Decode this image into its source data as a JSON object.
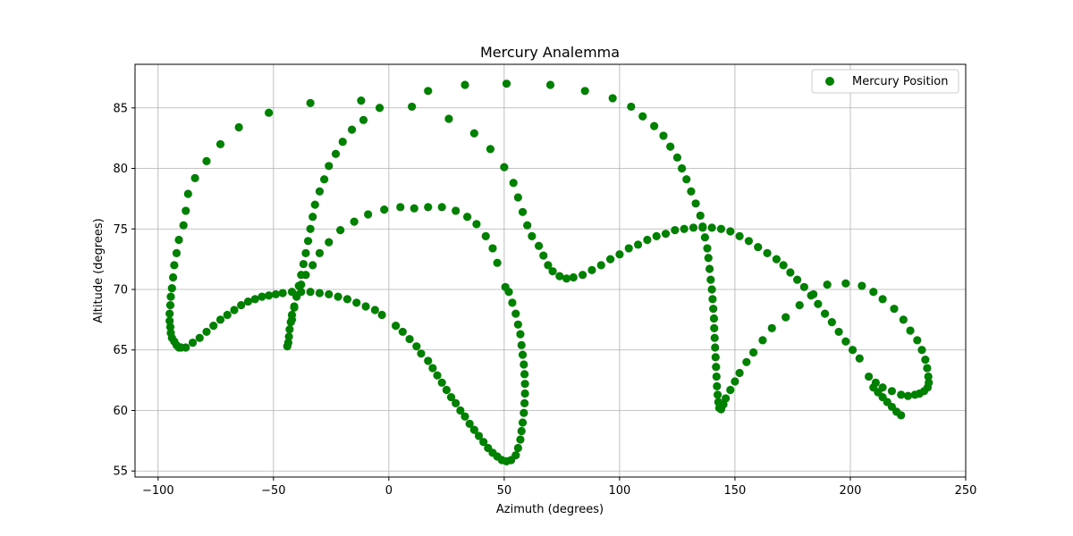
{
  "chart_data": {
    "type": "scatter",
    "title": "Mercury Analemma",
    "xlabel": "Azimuth (degrees)",
    "ylabel": "Altitude (degrees)",
    "xlim": [
      -110,
      250
    ],
    "ylim": [
      54.5,
      88.6
    ],
    "xticks": [
      -100,
      -50,
      0,
      50,
      100,
      150,
      200,
      250
    ],
    "yticks": [
      55,
      60,
      65,
      70,
      75,
      80,
      85
    ],
    "grid": true,
    "legend_position": "top-right",
    "series": [
      {
        "name": "Mercury Position",
        "color": "#008000",
        "marker": "circle",
        "points": [
          [
            -88,
            65.2
          ],
          [
            -85,
            65.6
          ],
          [
            -82,
            66.0
          ],
          [
            -79,
            66.5
          ],
          [
            -76,
            67.0
          ],
          [
            -73,
            67.5
          ],
          [
            -70,
            67.9
          ],
          [
            -67,
            68.3
          ],
          [
            -64,
            68.7
          ],
          [
            -61,
            69.0
          ],
          [
            -58,
            69.2
          ],
          [
            -55,
            69.4
          ],
          [
            -52,
            69.5
          ],
          [
            -49,
            69.6
          ],
          [
            -46,
            69.7
          ],
          [
            -42,
            69.8
          ],
          [
            -38,
            69.8
          ],
          [
            -34,
            69.8
          ],
          [
            -30,
            69.7
          ],
          [
            -26,
            69.6
          ],
          [
            -22,
            69.4
          ],
          [
            -18,
            69.2
          ],
          [
            -14,
            68.9
          ],
          [
            -10,
            68.6
          ],
          [
            -6,
            68.3
          ],
          [
            -3,
            67.9
          ],
          [
            3,
            67.0
          ],
          [
            6,
            66.5
          ],
          [
            9,
            65.9
          ],
          [
            12,
            65.3
          ],
          [
            14,
            64.7
          ],
          [
            17,
            64.1
          ],
          [
            19,
            63.5
          ],
          [
            21,
            62.9
          ],
          [
            23,
            62.3
          ],
          [
            25,
            61.7
          ],
          [
            27,
            61.1
          ],
          [
            29,
            60.6
          ],
          [
            31,
            60.0
          ],
          [
            33,
            59.5
          ],
          [
            35,
            58.9
          ],
          [
            37,
            58.4
          ],
          [
            39,
            57.9
          ],
          [
            41,
            57.4
          ],
          [
            43,
            56.9
          ],
          [
            45,
            56.5
          ],
          [
            47,
            56.2
          ],
          [
            49,
            55.9
          ],
          [
            51,
            55.8
          ],
          [
            53,
            55.9
          ],
          [
            55,
            56.3
          ],
          [
            56,
            56.9
          ],
          [
            57,
            57.6
          ],
          [
            57.5,
            58.3
          ],
          [
            58,
            59.0
          ],
          [
            58.5,
            59.8
          ],
          [
            58.8,
            60.6
          ],
          [
            59,
            61.4
          ],
          [
            59,
            62.2
          ],
          [
            58.8,
            63.0
          ],
          [
            58.5,
            63.8
          ],
          [
            58,
            64.6
          ],
          [
            57.5,
            65.4
          ],
          [
            57,
            66.3
          ],
          [
            56,
            67.1
          ],
          [
            55,
            68.0
          ],
          [
            53.5,
            68.9
          ],
          [
            52,
            69.8
          ],
          [
            50.5,
            70.2
          ],
          [
            47,
            72.2
          ],
          [
            45,
            73.4
          ],
          [
            42,
            74.4
          ],
          [
            38,
            75.4
          ],
          [
            34,
            76.0
          ],
          [
            29,
            76.5
          ],
          [
            23,
            76.8
          ],
          [
            17,
            76.8
          ],
          [
            11,
            76.7
          ],
          [
            5,
            76.8
          ],
          [
            -2,
            76.6
          ],
          [
            -9,
            76.2
          ],
          [
            -15,
            75.6
          ],
          [
            -21,
            74.9
          ],
          [
            -26,
            73.9
          ],
          [
            -30,
            73.0
          ],
          [
            -33,
            72.0
          ],
          [
            -36,
            71.2
          ],
          [
            -38,
            70.4
          ],
          [
            -40,
            69.4
          ],
          [
            -41,
            68.6
          ],
          [
            -42,
            67.9
          ],
          [
            -42.5,
            67.3
          ],
          [
            -43,
            66.7
          ],
          [
            -43.3,
            66.1
          ],
          [
            -43.6,
            65.6
          ],
          [
            -44,
            65.3
          ],
          [
            -42,
            67.5
          ],
          [
            -41,
            68.5
          ],
          [
            -40,
            69.5
          ],
          [
            -39,
            70.3
          ],
          [
            -38,
            71.2
          ],
          [
            -37,
            72.1
          ],
          [
            -36,
            73.0
          ],
          [
            -35,
            74.0
          ],
          [
            -34,
            75.0
          ],
          [
            -33,
            76.0
          ],
          [
            -32,
            77.0
          ],
          [
            -30,
            78.1
          ],
          [
            -28,
            79.1
          ],
          [
            -26,
            80.2
          ],
          [
            -23,
            81.2
          ],
          [
            -20,
            82.2
          ],
          [
            -16,
            83.2
          ],
          [
            -11,
            84.0
          ],
          [
            -12,
            85.6
          ],
          [
            -34,
            85.4
          ],
          [
            -52,
            84.6
          ],
          [
            -65,
            83.4
          ],
          [
            -73,
            82.0
          ],
          [
            -79,
            80.6
          ],
          [
            -84,
            79.2
          ],
          [
            -87,
            77.9
          ],
          [
            -88,
            76.5
          ],
          [
            -89,
            75.3
          ],
          [
            -91,
            74.1
          ],
          [
            -92,
            73.0
          ],
          [
            -93,
            72.0
          ],
          [
            -93.5,
            71.0
          ],
          [
            -94,
            70.1
          ],
          [
            -94.5,
            69.4
          ],
          [
            -94.7,
            68.7
          ],
          [
            -95,
            68.0
          ],
          [
            -95,
            67.4
          ],
          [
            -94.7,
            66.9
          ],
          [
            -94.5,
            66.4
          ],
          [
            -94,
            66.0
          ],
          [
            -93,
            65.7
          ],
          [
            -92,
            65.4
          ],
          [
            -91,
            65.2
          ],
          [
            -90,
            65.2
          ],
          [
            -4,
            85.0
          ],
          [
            10,
            85.1
          ],
          [
            17,
            86.4
          ],
          [
            33,
            86.9
          ],
          [
            51,
            87.0
          ],
          [
            70,
            86.9
          ],
          [
            85,
            86.4
          ],
          [
            97,
            85.8
          ],
          [
            105,
            85.1
          ],
          [
            110,
            84.3
          ],
          [
            115,
            83.5
          ],
          [
            119,
            82.7
          ],
          [
            122,
            81.8
          ],
          [
            125,
            80.9
          ],
          [
            127,
            80.0
          ],
          [
            129,
            79.1
          ],
          [
            131,
            78.1
          ],
          [
            133,
            77.1
          ],
          [
            135,
            76.1
          ],
          [
            136,
            75.2
          ],
          [
            137,
            74.3
          ],
          [
            138,
            73.4
          ],
          [
            138.5,
            72.6
          ],
          [
            139,
            71.7
          ],
          [
            139.5,
            70.8
          ],
          [
            140,
            70.0
          ],
          [
            140.3,
            69.2
          ],
          [
            140.6,
            68.4
          ],
          [
            140.9,
            67.6
          ],
          [
            141,
            66.8
          ],
          [
            141.2,
            66.0
          ],
          [
            141.4,
            65.2
          ],
          [
            141.6,
            64.4
          ],
          [
            141.8,
            63.6
          ],
          [
            142,
            62.8
          ],
          [
            142.2,
            62.0
          ],
          [
            142.5,
            61.3
          ],
          [
            142.8,
            60.7
          ],
          [
            143.2,
            60.2
          ],
          [
            144,
            60.1
          ],
          [
            145,
            60.5
          ],
          [
            146,
            61.0
          ],
          [
            148,
            61.7
          ],
          [
            150,
            62.4
          ],
          [
            152,
            63.1
          ],
          [
            155,
            64.0
          ],
          [
            158,
            64.8
          ],
          [
            162,
            65.8
          ],
          [
            166,
            66.8
          ],
          [
            172,
            67.7
          ],
          [
            178,
            68.7
          ],
          [
            184,
            69.6
          ],
          [
            190,
            70.4
          ],
          [
            198,
            70.5
          ],
          [
            205,
            70.3
          ],
          [
            210,
            69.8
          ],
          [
            214,
            69.2
          ],
          [
            219,
            68.4
          ],
          [
            223,
            67.5
          ],
          [
            226,
            66.6
          ],
          [
            229,
            65.8
          ],
          [
            231,
            65.0
          ],
          [
            232.5,
            64.2
          ],
          [
            233.3,
            63.5
          ],
          [
            233.8,
            62.8
          ],
          [
            234,
            62.3
          ],
          [
            233.5,
            61.9
          ],
          [
            232,
            61.6
          ],
          [
            230,
            61.4
          ],
          [
            228,
            61.3
          ],
          [
            225,
            61.2
          ],
          [
            222,
            61.3
          ],
          [
            218,
            61.6
          ],
          [
            214,
            61.9
          ],
          [
            211,
            62.3
          ],
          [
            208,
            62.8
          ],
          [
            210,
            61.9
          ],
          [
            212,
            61.5
          ],
          [
            214,
            61.1
          ],
          [
            216,
            60.7
          ],
          [
            218,
            60.3
          ],
          [
            220,
            59.9
          ],
          [
            222,
            59.6
          ],
          [
            204,
            64.3
          ],
          [
            201,
            65.0
          ],
          [
            198,
            65.7
          ],
          [
            195,
            66.5
          ],
          [
            192,
            67.3
          ],
          [
            189,
            68.0
          ],
          [
            186,
            68.8
          ],
          [
            183,
            69.5
          ],
          [
            180,
            70.2
          ],
          [
            177,
            70.8
          ],
          [
            174,
            71.4
          ],
          [
            171,
            72.0
          ],
          [
            168,
            72.5
          ],
          [
            164,
            73.0
          ],
          [
            160,
            73.5
          ],
          [
            156,
            74.0
          ],
          [
            152,
            74.4
          ],
          [
            148,
            74.8
          ],
          [
            144,
            75.0
          ],
          [
            140,
            75.1
          ],
          [
            136,
            75.1
          ],
          [
            132,
            75.1
          ],
          [
            128,
            75.0
          ],
          [
            124,
            74.9
          ],
          [
            120,
            74.6
          ],
          [
            116,
            74.4
          ],
          [
            112,
            74.1
          ],
          [
            108,
            73.7
          ],
          [
            104,
            73.4
          ],
          [
            100,
            72.9
          ],
          [
            96,
            72.5
          ],
          [
            92,
            72.0
          ],
          [
            88,
            71.6
          ],
          [
            84,
            71.2
          ],
          [
            80,
            71.0
          ],
          [
            77,
            70.9
          ],
          [
            74,
            71.1
          ],
          [
            71,
            71.5
          ],
          [
            69,
            72.0
          ],
          [
            67,
            72.8
          ],
          [
            65,
            73.6
          ],
          [
            62,
            74.4
          ],
          [
            60,
            75.3
          ],
          [
            58,
            76.4
          ],
          [
            56,
            77.6
          ],
          [
            54,
            78.8
          ],
          [
            50,
            80.1
          ],
          [
            44,
            81.6
          ],
          [
            37,
            82.9
          ],
          [
            26,
            84.1
          ]
        ]
      }
    ]
  }
}
